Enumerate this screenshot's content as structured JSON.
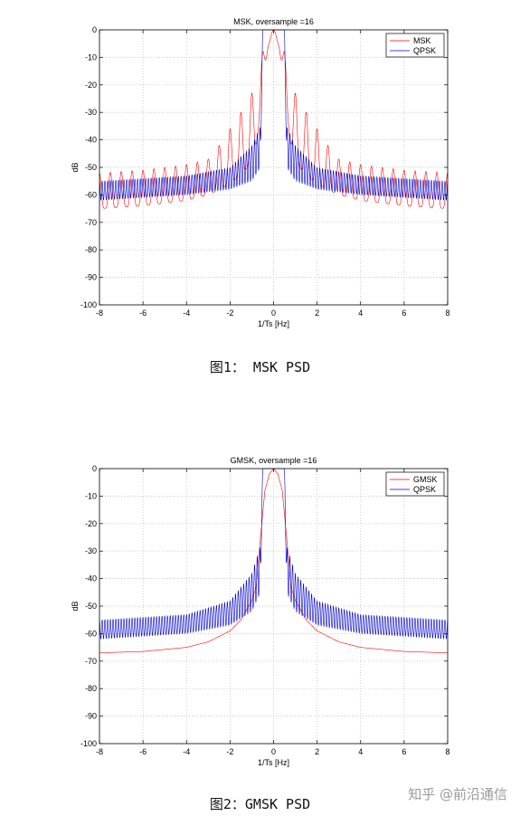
{
  "chart_data": [
    {
      "type": "line",
      "title": "MSK, oversample =16",
      "xlabel": "1/Ts [Hz]",
      "ylabel": "dB",
      "xlim": [
        -8,
        8
      ],
      "ylim": [
        -100,
        0
      ],
      "xticks": [
        -8,
        -6,
        -4,
        -2,
        0,
        2,
        4,
        6,
        8
      ],
      "yticks": [
        0,
        -10,
        -20,
        -30,
        -40,
        -50,
        -60,
        -70,
        -80,
        -90,
        -100
      ],
      "grid": true,
      "legend_position": "top-right",
      "series": [
        {
          "name": "MSK",
          "color": "#ff0000",
          "description_points": {
            "x": [
              -8,
              -6,
              -4,
              -3,
              -2.5,
              -2,
              -1.5,
              -1,
              -0.75,
              -0.5,
              -0.25,
              0,
              0.25,
              0.5,
              0.75,
              1,
              1.5,
              2,
              2.5,
              3,
              4,
              6,
              8
            ],
            "peak": [
              -52,
              -51,
              -49,
              -47,
              -42,
              -36,
              -30,
              -23,
              -20,
              -8,
              -2,
              0,
              -2,
              -8,
              -20,
              -23,
              -30,
              -36,
              -42,
              -47,
              -49,
              -51,
              -52
            ],
            "null": [
              -65,
              -64,
              -62,
              -60,
              -58,
              -56,
              -53,
              -48,
              -40,
              -20,
              -6,
              0,
              -6,
              -20,
              -40,
              -48,
              -53,
              -56,
              -58,
              -60,
              -62,
              -64,
              -65
            ]
          }
        },
        {
          "name": "QPSK",
          "color": "#0000cc",
          "description_points": {
            "x": [
              -8,
              -6,
              -4,
              -2,
              -1,
              -0.6,
              -0.5,
              0,
              0.5,
              0.6,
              1,
              2,
              4,
              6,
              8
            ],
            "peak": [
              -55,
              -54,
              -53,
              -50,
              -42,
              -35,
              0,
              0,
              0,
              -35,
              -42,
              -50,
              -53,
              -54,
              -55
            ],
            "null": [
              -62,
              -61,
              -60,
              -58,
              -55,
              -50,
              0,
              0,
              0,
              -50,
              -55,
              -58,
              -60,
              -61,
              -62
            ]
          }
        }
      ]
    },
    {
      "type": "line",
      "title": "GMSK, oversample =16",
      "xlabel": "1/Ts [Hz]",
      "ylabel": "dB",
      "xlim": [
        -8,
        8
      ],
      "ylim": [
        -100,
        0
      ],
      "xticks": [
        -8,
        -6,
        -4,
        -2,
        0,
        2,
        4,
        6,
        8
      ],
      "yticks": [
        0,
        -10,
        -20,
        -30,
        -40,
        -50,
        -60,
        -70,
        -80,
        -90,
        -100
      ],
      "grid": true,
      "legend_position": "top-right",
      "series": [
        {
          "name": "GMSK",
          "color": "#ff0000",
          "description_points": {
            "x": [
              -8,
              -6,
              -4,
              -3,
              -2,
              -1.5,
              -1,
              -0.8,
              -0.6,
              -0.4,
              -0.2,
              0,
              0.2,
              0.4,
              0.6,
              0.8,
              1,
              1.5,
              2,
              3,
              4,
              6,
              8
            ],
            "peak": [
              -67,
              -66.5,
              -65,
              -63,
              -59,
              -55,
              -48,
              -43,
              -25,
              -8,
              -2,
              0,
              -2,
              -8,
              -25,
              -43,
              -48,
              -55,
              -59,
              -63,
              -65,
              -66.5,
              -67
            ],
            "null": [
              -67,
              -66.5,
              -65,
              -63,
              -59,
              -55,
              -48,
              -43,
              -25,
              -8,
              -2,
              0,
              -2,
              -8,
              -25,
              -43,
              -48,
              -55,
              -59,
              -63,
              -65,
              -66.5,
              -67
            ]
          }
        },
        {
          "name": "QPSK",
          "color": "#0000cc",
          "description_points": {
            "x": [
              -8,
              -6,
              -4,
              -2,
              -1,
              -0.6,
              -0.5,
              0,
              0.5,
              0.6,
              1,
              2,
              4,
              6,
              8
            ],
            "peak": [
              -55,
              -54,
              -53,
              -48,
              -38,
              -28,
              0,
              0,
              0,
              -28,
              -38,
              -48,
              -53,
              -54,
              -55
            ],
            "null": [
              -62,
              -61,
              -60,
              -57,
              -52,
              -45,
              0,
              0,
              0,
              -45,
              -52,
              -57,
              -60,
              -61,
              -62
            ]
          }
        }
      ]
    }
  ],
  "captions": {
    "figure1": "图1： MSK PSD",
    "figure2": "图2：GMSK PSD"
  },
  "watermark": "知乎 @前沿通信"
}
